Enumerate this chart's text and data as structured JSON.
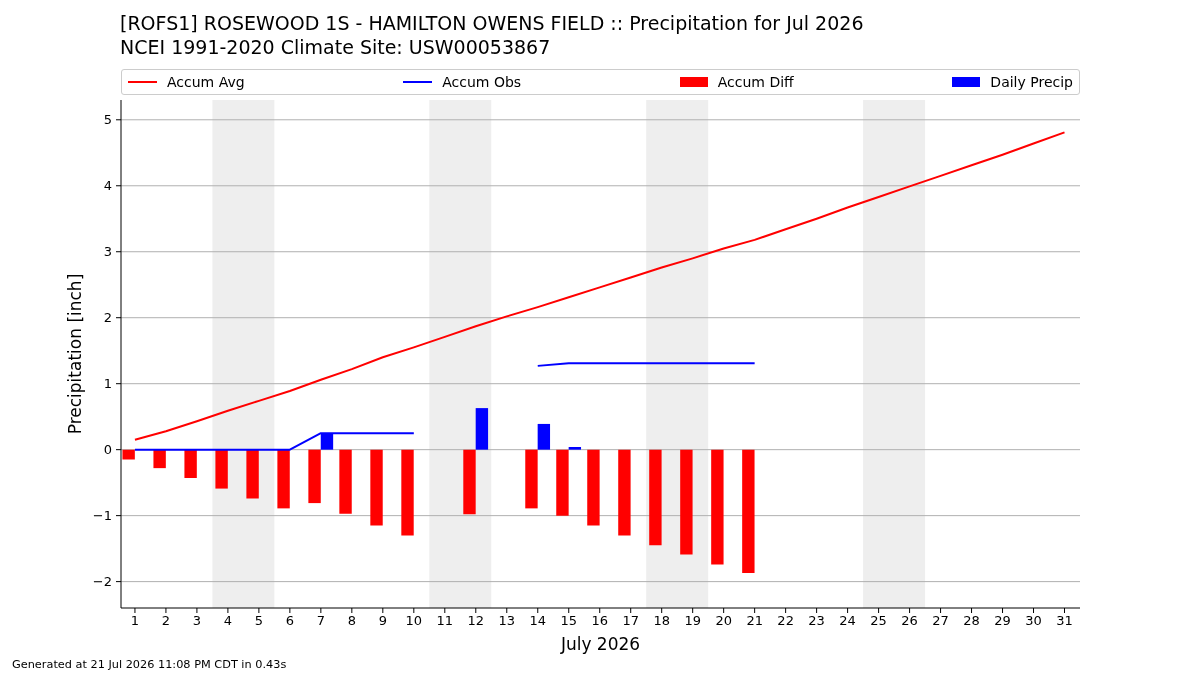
{
  "chart_data": {
    "type": "bar",
    "title": "[ROFS1] ROSEWOOD 1S - HAMILTON OWENS FIELD :: Precipitation for Jul 2026",
    "subtitle": "NCEI 1991-2020 Climate Site: USW00053867",
    "xlabel": "July 2026",
    "ylabel": "Precipitation [inch]",
    "x": [
      1,
      2,
      3,
      4,
      5,
      6,
      7,
      8,
      9,
      10,
      11,
      12,
      13,
      14,
      15,
      16,
      17,
      18,
      19,
      20,
      21,
      22,
      23,
      24,
      25,
      26,
      27,
      28,
      29,
      30,
      31
    ],
    "series": [
      {
        "name": "Accum Avg",
        "type": "line",
        "color": "#ff0000",
        "values": [
          0.15,
          0.28,
          0.43,
          0.59,
          0.74,
          0.89,
          1.06,
          1.22,
          1.4,
          1.55,
          1.71,
          1.87,
          2.02,
          2.16,
          2.31,
          2.46,
          2.61,
          2.76,
          2.9,
          3.05,
          3.18,
          3.34,
          3.5,
          3.67,
          3.83,
          3.99,
          4.15,
          4.31,
          4.47,
          4.64,
          4.81
        ]
      },
      {
        "name": "Accum Obs",
        "type": "line",
        "color": "#0000ff",
        "values": [
          0,
          0,
          0,
          0,
          0,
          0,
          0.25,
          0.25,
          0.25,
          0.25,
          null,
          null,
          null,
          1.27,
          1.31,
          1.31,
          1.31,
          1.31,
          1.31,
          1.31,
          1.31,
          null,
          null,
          null,
          null,
          null,
          null,
          null,
          null,
          null,
          null
        ]
      },
      {
        "name": "Accum Diff",
        "color": "#ff0000",
        "values": [
          -0.15,
          -0.28,
          -0.43,
          -0.59,
          -0.74,
          -0.89,
          -0.81,
          -0.97,
          -1.15,
          -1.3,
          null,
          -0.98,
          null,
          -0.89,
          -1.0,
          -1.15,
          -1.3,
          -1.45,
          -1.59,
          -1.74,
          -1.87,
          null,
          null,
          null,
          null,
          null,
          null,
          null,
          null,
          null,
          null
        ]
      },
      {
        "name": "Daily Precip",
        "color": "#0000ff",
        "values": [
          null,
          null,
          null,
          null,
          null,
          null,
          0.25,
          null,
          null,
          null,
          null,
          0.63,
          null,
          0.39,
          0.04,
          null,
          null,
          null,
          null,
          null,
          null,
          null,
          null,
          null,
          null,
          null,
          null,
          null,
          null,
          null,
          null
        ]
      }
    ],
    "xlim": [
      0.55,
      31.5
    ],
    "xticks": [
      1,
      2,
      3,
      4,
      5,
      6,
      7,
      8,
      9,
      10,
      11,
      12,
      13,
      14,
      15,
      16,
      17,
      18,
      19,
      20,
      21,
      22,
      23,
      24,
      25,
      26,
      27,
      28,
      29,
      30,
      31
    ],
    "ylim": [
      -2.4,
      5.3
    ],
    "yticks": [
      -2,
      -1,
      0,
      1,
      2,
      3,
      4,
      5
    ],
    "grid": "y",
    "legend": "top",
    "bands": [
      {
        "axis": "x",
        "from": 3.5,
        "to": 5.5,
        "color": "#eeeeee"
      },
      {
        "axis": "x",
        "from": 10.5,
        "to": 12.5,
        "color": "#eeeeee"
      },
      {
        "axis": "x",
        "from": 17.5,
        "to": 19.5,
        "color": "#eeeeee"
      },
      {
        "axis": "x",
        "from": 24.5,
        "to": 26.5,
        "color": "#eeeeee"
      }
    ],
    "annotations": [
      "Generated at 21 Jul 2026 11:08 PM CDT in 0.43s"
    ]
  }
}
